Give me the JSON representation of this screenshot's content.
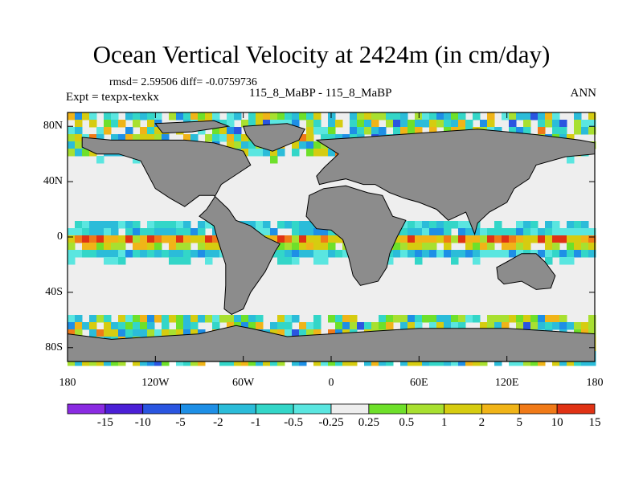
{
  "title": "Ocean Vertical Velocity at 2424m (in cm/day)",
  "stats": "rmsd= 2.59506 diff= -0.0759736",
  "expt": "Expt = texpx-texkx",
  "center_label": "115_8_MaBP - 115_8_MaBP",
  "season": "ANN",
  "lat_ticks": [
    "80N",
    "40N",
    "0",
    "40S",
    "80S"
  ],
  "lon_ticks": [
    "180",
    "120W",
    "60W",
    "0",
    "60E",
    "120E",
    "180"
  ],
  "colorbar": {
    "labels": [
      "-15",
      "-10",
      "-5",
      "-2",
      "-1",
      "-0.5",
      "-0.25",
      "0.25",
      "0.5",
      "1",
      "2",
      "5",
      "10",
      "15"
    ],
    "colors": [
      "#8a2be2",
      "#4b1fd6",
      "#2a55e0",
      "#1e8fe6",
      "#2bbcd9",
      "#33d6c8",
      "#5ae6e0",
      "#eeeeee",
      "#6ee02a",
      "#a8e030",
      "#d6cc10",
      "#f0b418",
      "#f07a18",
      "#e03214"
    ]
  },
  "colors": {
    "land": "#8c8c8c",
    "neutral": "#eeeeee",
    "coast": "#000000"
  }
}
